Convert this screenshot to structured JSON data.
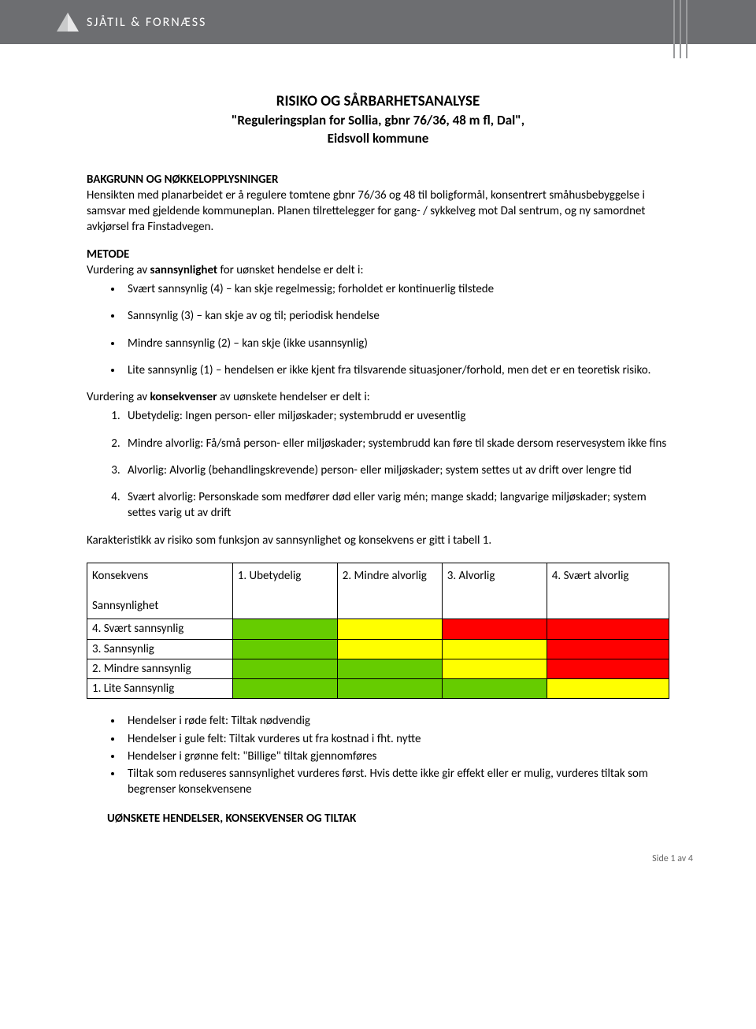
{
  "header": {
    "brand": "SJÅTIL & FORNÆSS",
    "logo_fill": "#c9cacb",
    "bar_bg": "#6d6e71",
    "line_color": "#9a9b9d"
  },
  "title": {
    "main": "RISIKO OG SÅRBARHETSANALYSE",
    "sub1": "\"Reguleringsplan for Sollia, gbnr 76/36, 48 m fl, Dal\",",
    "sub2": "Eidsvoll kommune"
  },
  "bakgrunn": {
    "heading": "BAKGRUNN OG NØKKELOPPLYSNINGER",
    "text": "Hensikten med planarbeidet er å regulere tomtene gbnr 76/36 og 48 til boligformål, konsentrert småhusbebyggelse i samsvar med gjeldende kommuneplan. Planen tilrettelegger for gang- / sykkelveg mot Dal sentrum, og ny samordnet avkjørsel fra Finstadvegen."
  },
  "metode": {
    "heading": "METODE",
    "intro_prefix": "Vurdering av ",
    "intro_bold": "sannsynlighet",
    "intro_suffix": " for uønsket hendelse er delt i:",
    "sannsynlighet": [
      "Svært sannsynlig (4) – kan skje regelmessig; forholdet er kontinuerlig tilstede",
      "Sannsynlig (3) – kan skje av og til; periodisk hendelse",
      "Mindre sannsynlig (2) – kan skje (ikke usannsynlig)",
      "Lite sannsynlig (1) – hendelsen er ikke kjent fra tilsvarende situasjoner/forhold, men det er en teoretisk risiko."
    ],
    "kons_intro_prefix": "Vurdering av ",
    "kons_intro_bold": "konsekvenser",
    "kons_intro_suffix": " av uønskete hendelser er delt i:",
    "konsekvenser": [
      "Ubetydelig: Ingen person- eller miljøskader; systembrudd er uvesentlig",
      "Mindre alvorlig: Få/små person- eller miljøskader; systembrudd kan føre til skade dersom reservesystem ikke fins",
      "Alvorlig: Alvorlig (behandlingskrevende) person- eller miljøskader; system settes ut av drift over lengre tid",
      "Svært alvorlig: Personskade som medfører død eller varig mén; mange skadd; langvarige miljøskader; system settes varig ut av drift"
    ],
    "karakteristikk": "Karakteristikk av risiko som funksjon av sannsynlighet og konsekvens er gitt i tabell 1."
  },
  "table": {
    "corner_top": "Konsekvens",
    "corner_bottom": "Sannsynlighet",
    "col_headers": [
      "1. Ubetydelig",
      "2. Mindre alvorlig",
      "3. Alvorlig",
      "4. Svært alvorlig"
    ],
    "row_labels": [
      "4. Svært sannsynlig",
      "3. Sannsynlig",
      "2. Mindre sannsynlig",
      "1. Lite Sannsynlig"
    ],
    "colors": {
      "green": "#66cc00",
      "yellow": "#ffff00",
      "red": "#ff0000"
    },
    "matrix": [
      [
        "green",
        "yellow",
        "red",
        "red"
      ],
      [
        "green",
        "yellow",
        "yellow",
        "red"
      ],
      [
        "green",
        "green",
        "yellow",
        "red"
      ],
      [
        "green",
        "green",
        "green",
        "yellow"
      ]
    ]
  },
  "legend": [
    "Hendelser i røde felt: Tiltak nødvendig",
    "Hendelser i gule felt: Tiltak vurderes ut fra kostnad i fht. nytte",
    "Hendelser i grønne felt: \"Billige\" tiltak gjennomføres",
    "Tiltak som reduseres sannsynlighet vurderes først. Hvis dette ikke gir effekt eller er mulig, vurderes tiltak som begrenser konsekvensene"
  ],
  "final_heading": "UØNSKETE HENDELSER, KONSEKVENSER OG TILTAK",
  "footer": "Side 1 av 4"
}
